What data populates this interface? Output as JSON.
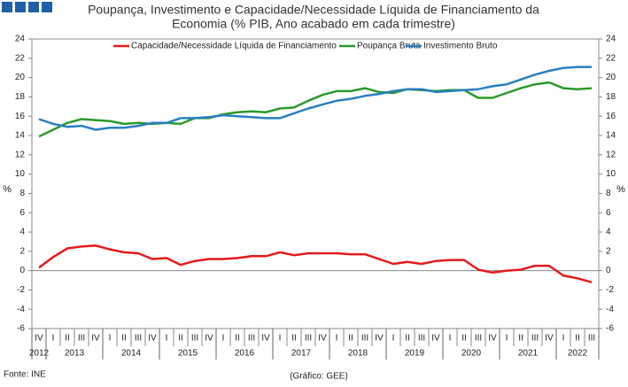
{
  "chart_data": {
    "type": "line",
    "title": [
      "Poupança, Investimento e Capacidade/Necessidade Líquida de Financiamento da",
      "Economia (% PIB, Ano acabado em cada trimestre)"
    ],
    "y_label": "%",
    "y2_label": "%",
    "source": "Fonte: INE",
    "credit": "(Gráfico: GEE)",
    "categories": [
      "IV",
      "I",
      "II",
      "III",
      "IV",
      "I",
      "II",
      "III",
      "IV",
      "I",
      "II",
      "III",
      "IV",
      "I",
      "II",
      "III",
      "IV",
      "I",
      "II",
      "III",
      "IV",
      "I",
      "II",
      "III",
      "IV",
      "I",
      "II",
      "III",
      "IV",
      "I",
      "II",
      "III",
      "IV",
      "I",
      "II",
      "III",
      "IV",
      "I",
      "II",
      "III"
    ],
    "years": [
      "2012",
      "2013",
      "2014",
      "2015",
      "2016",
      "2017",
      "2018",
      "2019",
      "2020",
      "2021",
      "2022"
    ],
    "ylim": [
      -6,
      24
    ],
    "yticks": [
      -6,
      -4,
      -2,
      0,
      2,
      4,
      6,
      8,
      10,
      12,
      14,
      16,
      18,
      20,
      22,
      24
    ],
    "y2lim": [
      -6,
      24
    ],
    "y2ticks": [
      -6,
      -4,
      -2,
      0,
      2,
      4,
      6,
      8,
      10,
      12,
      14,
      16,
      18,
      20,
      22,
      24
    ],
    "grid": false,
    "series": [
      {
        "name": "Capacidade/Necessidade Líquida de Financiamento",
        "color": "#e31a1c",
        "values": [
          0.3,
          1.4,
          2.3,
          2.5,
          2.6,
          2.2,
          1.9,
          1.8,
          1.2,
          1.3,
          0.6,
          1.0,
          1.2,
          1.2,
          1.3,
          1.5,
          1.5,
          1.9,
          1.6,
          1.8,
          1.8,
          1.8,
          1.7,
          1.7,
          1.2,
          0.7,
          0.9,
          0.7,
          1.0,
          1.1,
          1.1,
          0.1,
          -0.2,
          0.0,
          0.1,
          0.5,
          0.5,
          -0.5,
          -0.8,
          -1.2
        ]
      },
      {
        "name": "Poupança Bruta",
        "color": "#2a9a2a",
        "values": [
          13.9,
          14.6,
          15.3,
          15.7,
          15.6,
          15.5,
          15.2,
          15.3,
          15.2,
          15.3,
          15.2,
          15.8,
          15.8,
          16.2,
          16.4,
          16.5,
          16.4,
          16.8,
          16.9,
          17.6,
          18.2,
          18.6,
          18.6,
          18.9,
          18.5,
          18.4,
          18.8,
          18.7,
          18.6,
          18.7,
          18.7,
          17.9,
          17.9,
          18.4,
          18.9,
          19.3,
          19.5,
          18.9,
          18.8,
          18.9
        ]
      },
      {
        "name": "Investimento Bruto",
        "color": "#2a7fc0",
        "values": [
          15.7,
          15.2,
          14.9,
          15.0,
          14.6,
          14.8,
          14.8,
          15.0,
          15.3,
          15.3,
          15.8,
          15.8,
          15.9,
          16.1,
          16.0,
          15.9,
          15.8,
          15.8,
          16.3,
          16.8,
          17.2,
          17.6,
          17.8,
          18.1,
          18.3,
          18.6,
          18.8,
          18.8,
          18.5,
          18.6,
          18.7,
          18.8,
          19.1,
          19.3,
          19.8,
          20.3,
          20.7,
          21.0,
          21.1,
          21.1
        ]
      }
    ]
  }
}
